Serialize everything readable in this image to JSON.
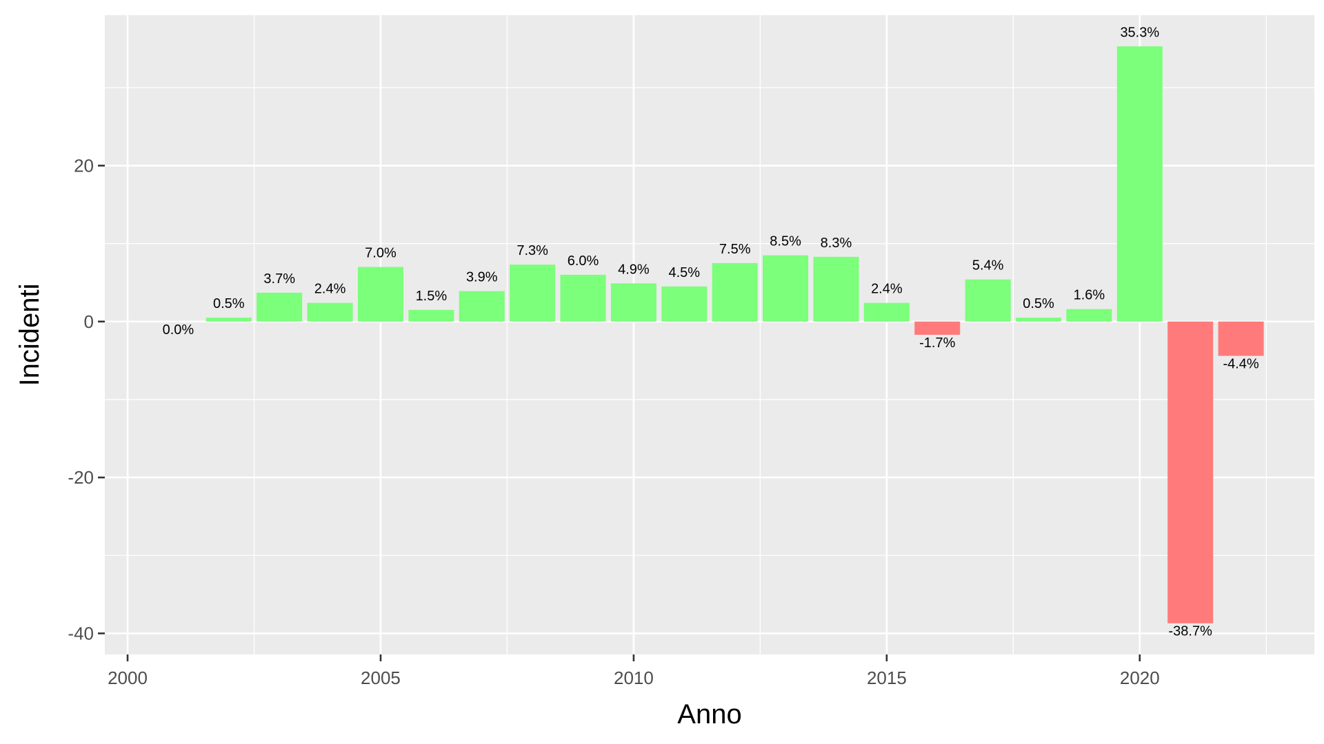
{
  "chart_data": {
    "type": "bar",
    "x": [
      2001,
      2002,
      2003,
      2004,
      2005,
      2006,
      2007,
      2008,
      2009,
      2010,
      2011,
      2012,
      2013,
      2014,
      2015,
      2016,
      2017,
      2018,
      2019,
      2020,
      2021,
      2022
    ],
    "values": [
      0.0,
      0.5,
      3.7,
      2.4,
      7.0,
      1.5,
      3.9,
      7.3,
      6.0,
      4.9,
      4.5,
      7.5,
      8.5,
      8.3,
      2.4,
      -1.7,
      5.4,
      0.5,
      1.6,
      35.3,
      -38.7,
      -4.4
    ],
    "labels": [
      "0.0%",
      "0.5%",
      "3.7%",
      "2.4%",
      "7.0%",
      "1.5%",
      "3.9%",
      "7.3%",
      "6.0%",
      "4.9%",
      "4.5%",
      "7.5%",
      "8.5%",
      "8.3%",
      "2.4%",
      "-1.7%",
      "5.4%",
      "0.5%",
      "1.6%",
      "35.3%",
      "-38.7%",
      "-4.4%"
    ],
    "xlabel": "Anno",
    "ylabel": "Incidenti",
    "xlim": [
      1999.55,
      2023.45
    ],
    "ylim": [
      -42.7,
      39.3
    ],
    "x_ticks": [
      "2000",
      "2005",
      "2010",
      "2015",
      "2020"
    ],
    "y_ticks": [
      "-40",
      "-20",
      "0",
      "20"
    ],
    "grid": true,
    "legend": "none",
    "colors": {
      "positive": "#7CFF7A",
      "negative": "#FF7B7B",
      "panel": "#EBEBEB",
      "grid": "#FFFFFF"
    }
  }
}
